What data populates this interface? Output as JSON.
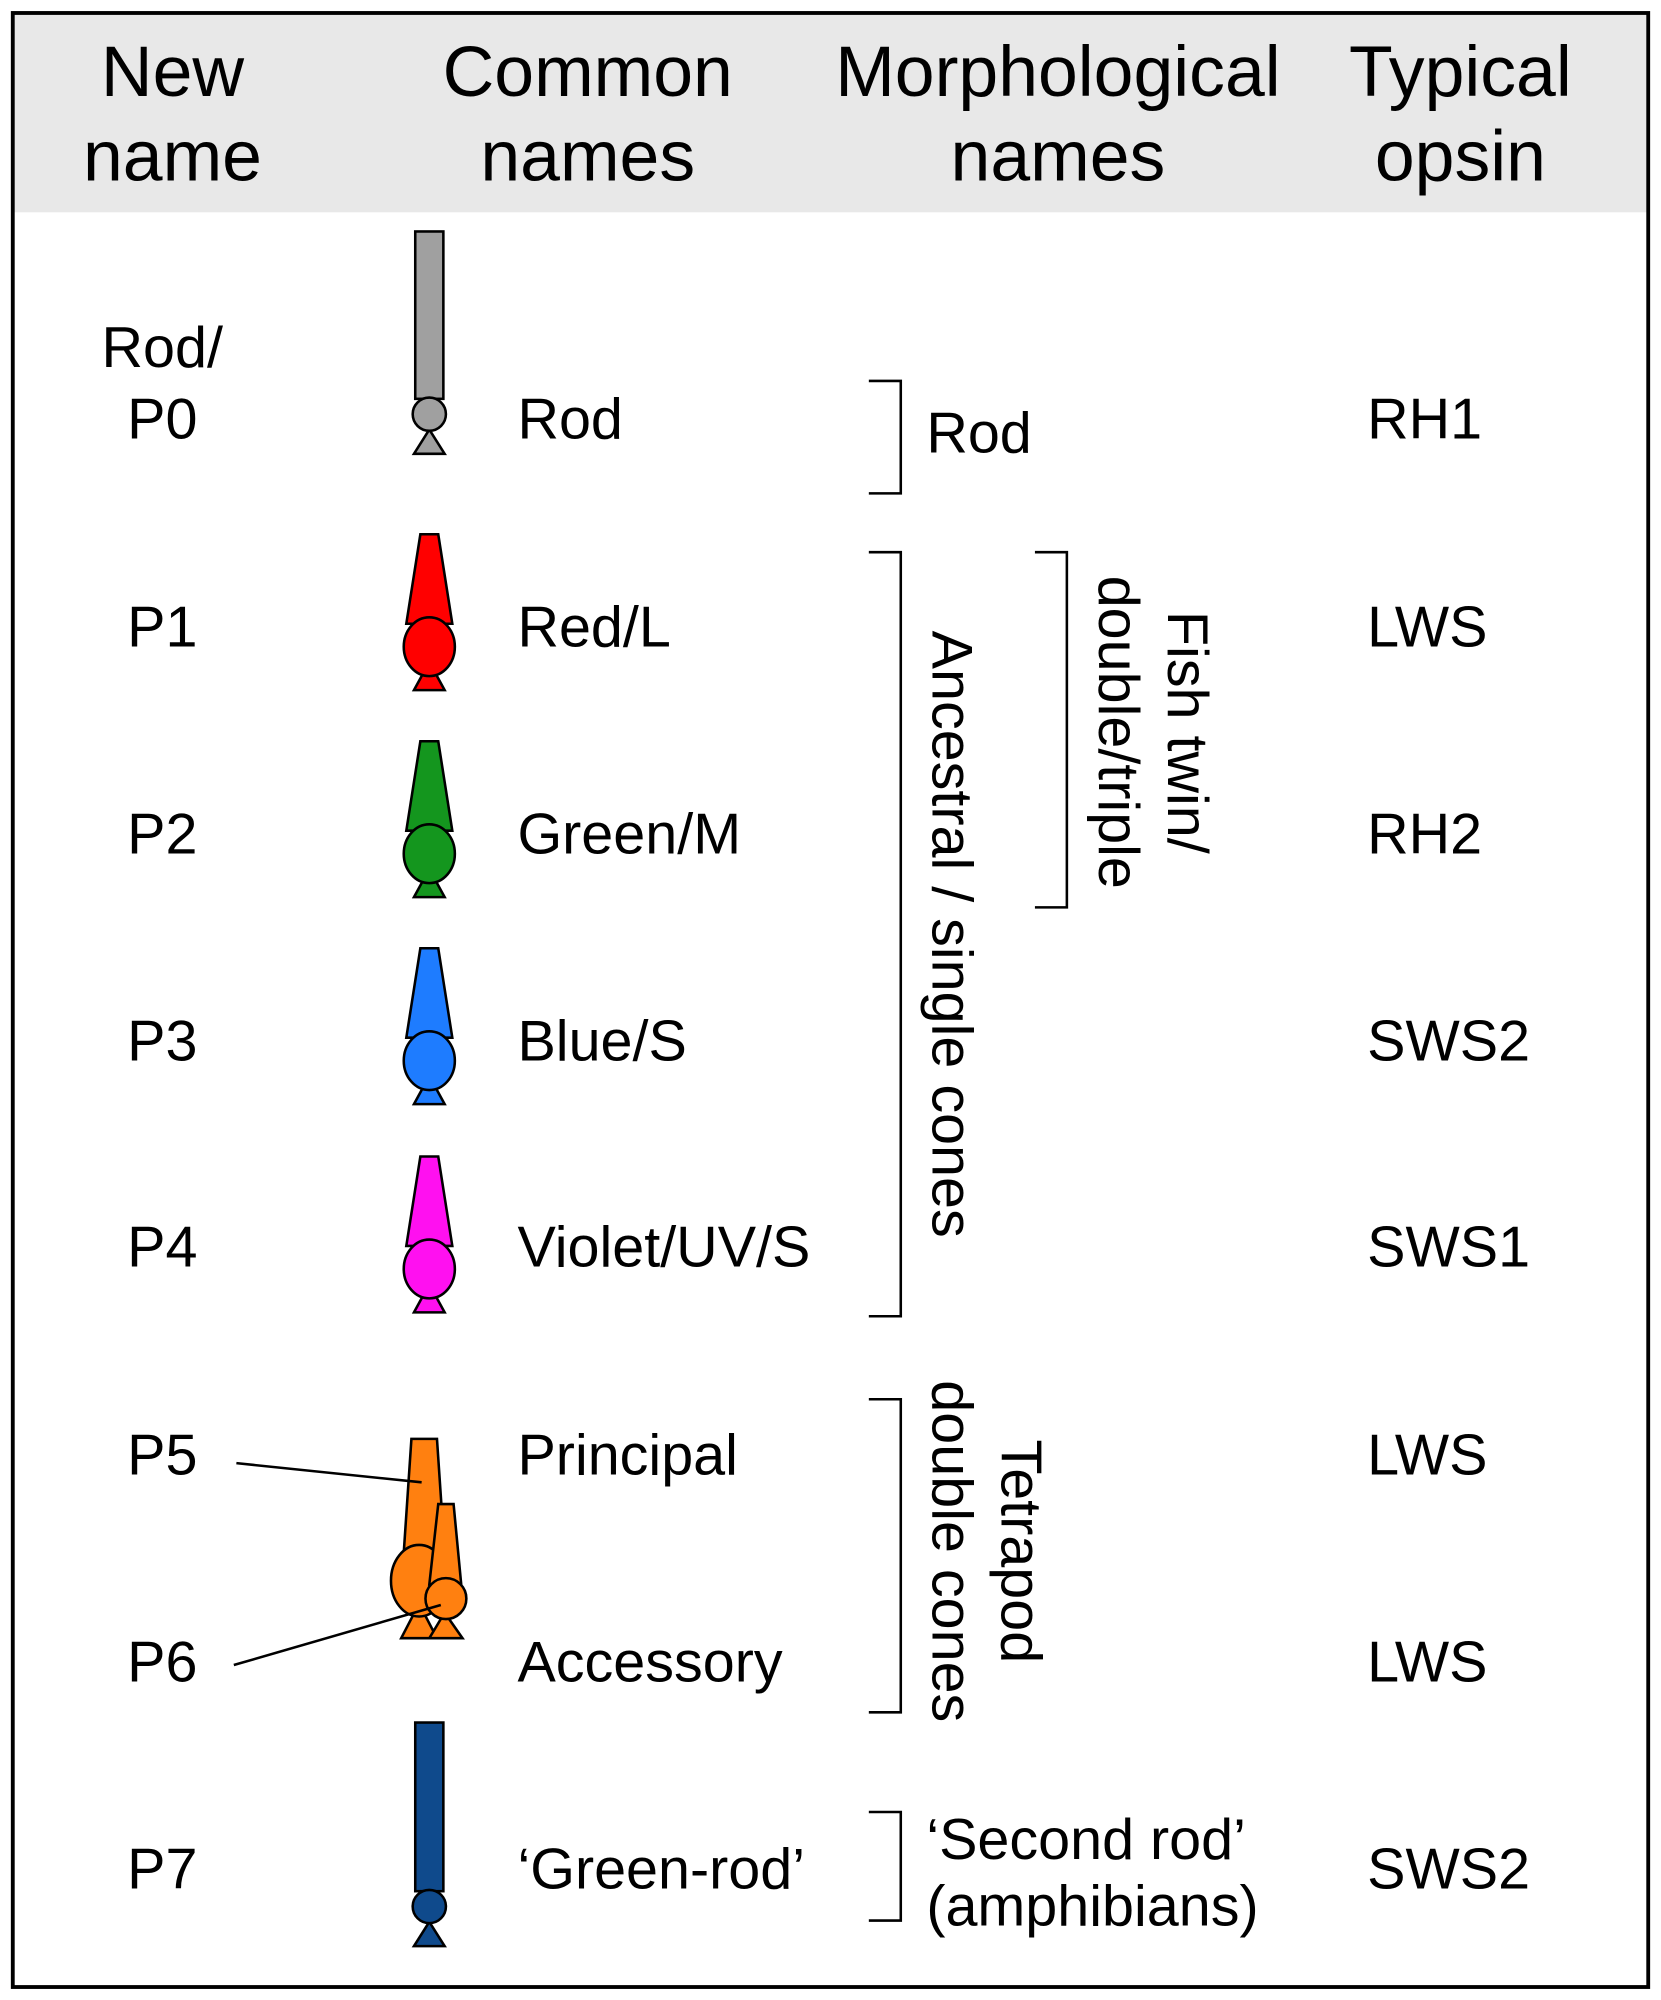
{
  "header": {
    "new_name": [
      "New",
      "name"
    ],
    "common_names": [
      "Common",
      "names"
    ],
    "morphological_names": [
      "Morphological",
      "names"
    ],
    "typical_opsin": [
      "Typical",
      "opsin"
    ]
  },
  "rows": [
    {
      "new_name": [
        "Rod/",
        "P0"
      ],
      "common_name": "Rod",
      "opsin": "RH1"
    },
    {
      "new_name": [
        "P1"
      ],
      "common_name": "Red/L",
      "opsin": "LWS"
    },
    {
      "new_name": [
        "P2"
      ],
      "common_name": "Green/M",
      "opsin": "RH2"
    },
    {
      "new_name": [
        "P3"
      ],
      "common_name": "Blue/S",
      "opsin": "SWS2"
    },
    {
      "new_name": [
        "P4"
      ],
      "common_name": "Violet/UV/S",
      "opsin": "SWS1"
    },
    {
      "new_name": [
        "P5"
      ],
      "common_name": "Principal",
      "opsin": "LWS"
    },
    {
      "new_name": [
        "P6"
      ],
      "common_name": "Accessory",
      "opsin": "LWS"
    },
    {
      "new_name": [
        "P7"
      ],
      "common_name": "‘Green-rod’",
      "opsin": "SWS2"
    }
  ],
  "morphological_groups": [
    {
      "label": [
        "Rod"
      ]
    },
    {
      "label": [
        "Ancestral / single cones"
      ]
    },
    {
      "label": [
        "Fish twin/",
        "double/triple"
      ]
    },
    {
      "label": [
        "Tetrapod",
        "double cones"
      ]
    },
    {
      "label": [
        "‘Second rod’",
        "(amphibians)"
      ]
    }
  ]
}
